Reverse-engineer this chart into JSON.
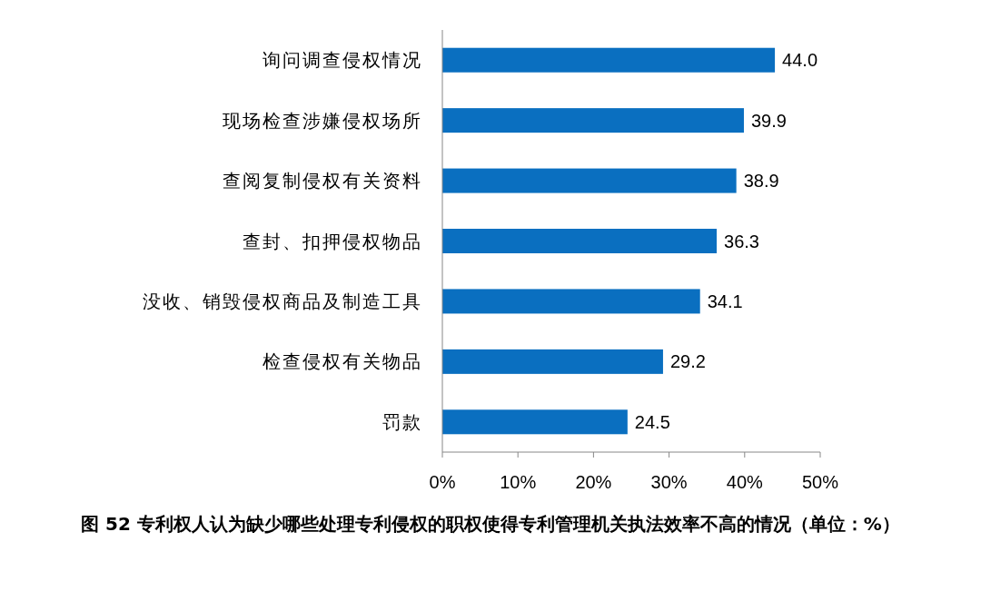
{
  "chart_data": {
    "type": "bar",
    "orientation": "horizontal",
    "title": "图 52 专利权人认为缺少哪些处理专利侵权的职权使得专利管理机关执法效率不高的情况（单位：%）",
    "categories": [
      "询问调查侵权情况",
      "现场检查涉嫌侵权场所",
      "查阅复制侵权有关资料",
      "查封、扣押侵权物品",
      "没收、销毁侵权商品及制造工具",
      "检查侵权有关物品",
      "罚款"
    ],
    "values": [
      44.0,
      39.9,
      38.9,
      36.3,
      34.1,
      29.2,
      24.5
    ],
    "color": "#0a6fc0",
    "value_labels": [
      "44.0",
      "39.9",
      "38.9",
      "36.3",
      "34.1",
      "29.2",
      "24.5"
    ],
    "xlim": [
      0,
      50
    ],
    "xticks": [
      {
        "value": 0,
        "label": "0%"
      },
      {
        "value": 10,
        "label": "10%"
      },
      {
        "value": 20,
        "label": "20%"
      },
      {
        "value": 30,
        "label": "30%"
      },
      {
        "value": 40,
        "label": "40%"
      },
      {
        "value": 50,
        "label": "50%"
      }
    ],
    "grid": false
  }
}
